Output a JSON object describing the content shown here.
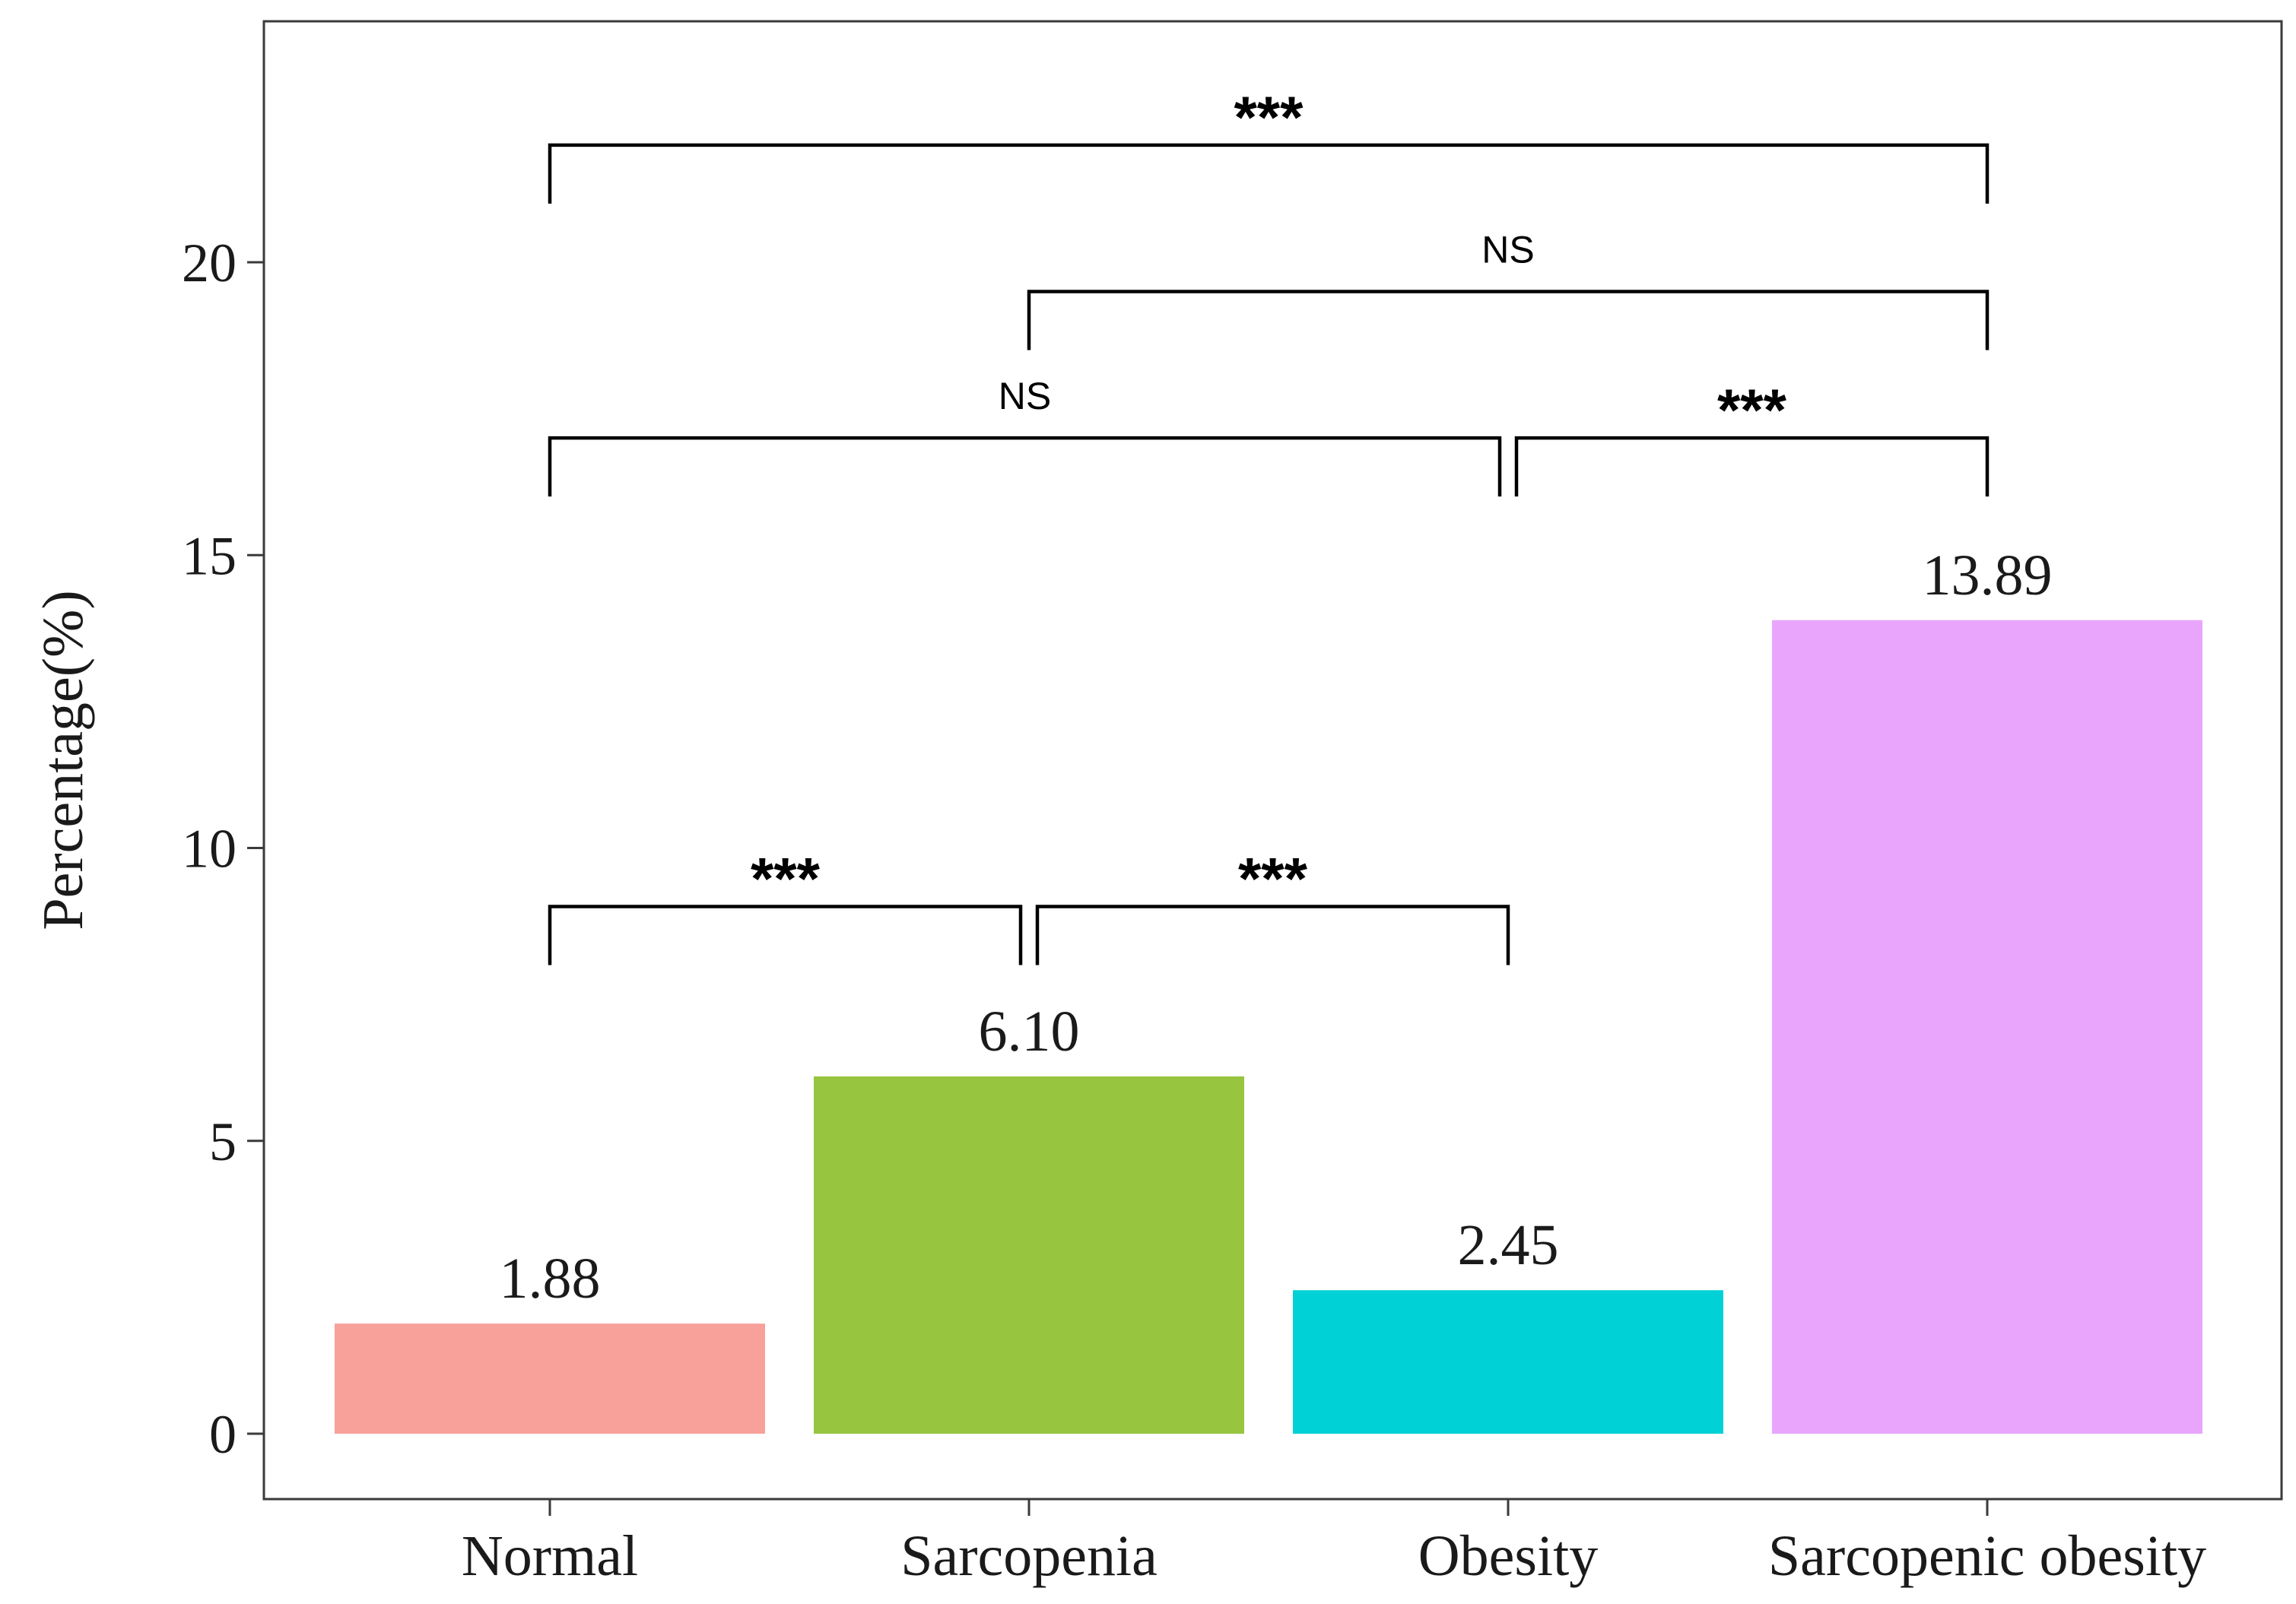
{
  "chart_data": {
    "type": "bar",
    "categories": [
      "Normal",
      "Sarcopenia",
      "Obesity",
      "Sarcopenic obesity"
    ],
    "values": [
      1.88,
      6.1,
      2.45,
      13.89
    ],
    "value_labels": [
      "1.88",
      "6.10",
      "2.45",
      "13.89"
    ],
    "colors": [
      "#F8A09A",
      "#97C53F",
      "#00D1D6",
      "#E8A5FB"
    ],
    "ylabel": "Percentage(%)",
    "xlabel": "",
    "ylim": [
      -1.1,
      24.1
    ],
    "yticks": [
      0,
      5,
      10,
      15,
      20
    ],
    "grid": false,
    "comparisons": [
      {
        "from": 0,
        "to": 3,
        "label": "***",
        "y": 22.0
      },
      {
        "from": 1,
        "to": 3,
        "label": "NS",
        "y": 19.5
      },
      {
        "from": 0,
        "to": 2,
        "label": "NS",
        "y": 17.0
      },
      {
        "from": 2,
        "to": 3,
        "label": "***",
        "y": 17.0
      },
      {
        "from": 0,
        "to": 1,
        "label": "***",
        "y": 9.0
      },
      {
        "from": 1,
        "to": 2,
        "label": "***",
        "y": 9.0
      }
    ]
  }
}
